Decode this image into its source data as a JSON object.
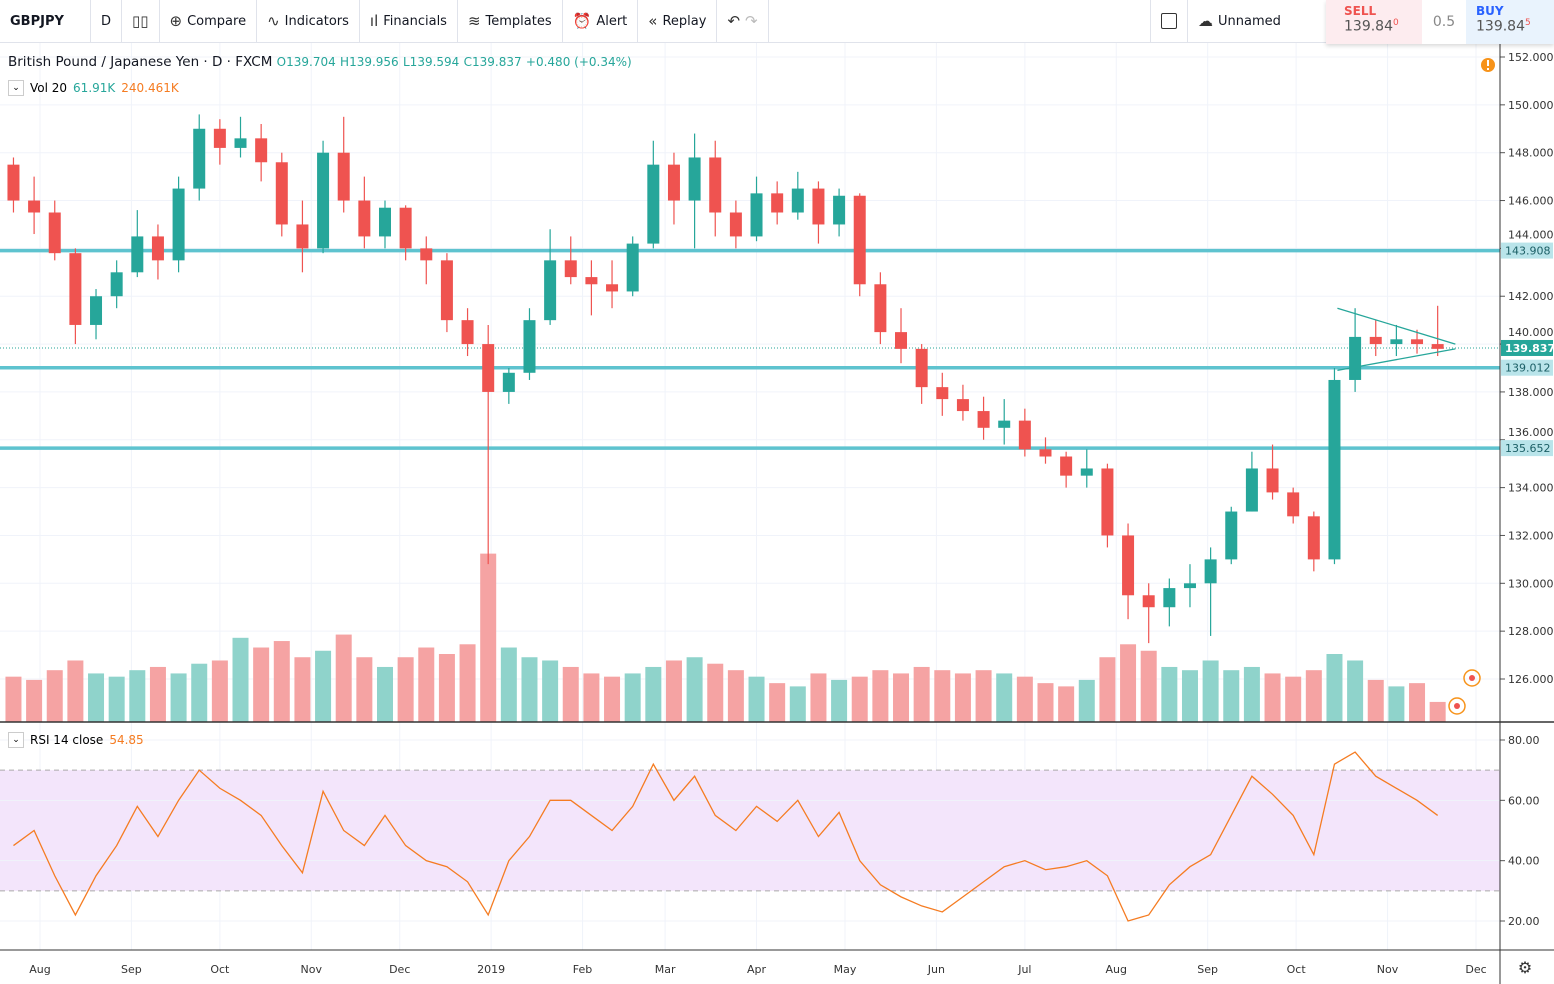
{
  "toolbar": {
    "symbol": "GBPJPY",
    "interval": "D",
    "compare": "Compare",
    "indicators": "Indicators",
    "financials": "Financials",
    "templates": "Templates",
    "alert": "Alert",
    "replay": "Replay",
    "layout_name": "Unnamed",
    "sell_label": "SELL",
    "sell_price": "139.84",
    "sell_sup": "0",
    "spread": "0.5",
    "buy_label": "BUY",
    "buy_price": "139.84",
    "buy_sup": "5"
  },
  "legend": {
    "title": "British Pound / Japanese Yen · D · FXCM",
    "open": "O139.704",
    "high": "H139.956",
    "low": "L139.594",
    "close": "C139.837",
    "change": "+0.480 (+0.34%)",
    "vol_label": "Vol 20",
    "vol_value": "61.91K",
    "vol_ma": "240.461K",
    "rsi_label": "RSI 14 close",
    "rsi_value": "54.85"
  },
  "colors": {
    "up": "#26a69a",
    "down": "#ef5350",
    "vol_up": "#8fd3cb",
    "vol_down": "#f5a3a3",
    "hline": "#5ec3cf",
    "rsi": "#f57c22",
    "rsi_band": "#f3e5fb",
    "accent": "#2962ff"
  },
  "chart_data": {
    "type": "candlestick",
    "symbol": "GBPJPY",
    "price_ticks": [
      "126.000",
      "128.000",
      "130.000",
      "132.000",
      "134.000",
      "136.000",
      "138.000",
      "140.000",
      "142.000",
      "144.000",
      "146.000",
      "148.000",
      "150.000",
      "152.000"
    ],
    "ylim": [
      124.5,
      152.6
    ],
    "x_ticks": [
      {
        "d": "2018-08-01",
        "label": "Aug"
      },
      {
        "d": "2018-09-01",
        "label": "Sep"
      },
      {
        "d": "2018-10-01",
        "label": "Oct"
      },
      {
        "d": "2018-11-01",
        "label": "Nov"
      },
      {
        "d": "2018-12-01",
        "label": "Dec"
      },
      {
        "d": "2019-01-01",
        "label": "2019"
      },
      {
        "d": "2019-02-01",
        "label": "Feb"
      },
      {
        "d": "2019-03-01",
        "label": "Mar"
      },
      {
        "d": "2019-04-01",
        "label": "Apr"
      },
      {
        "d": "2019-05-01",
        "label": "May"
      },
      {
        "d": "2019-06-01",
        "label": "Jun"
      },
      {
        "d": "2019-07-01",
        "label": "Jul"
      },
      {
        "d": "2019-08-01",
        "label": "Aug"
      },
      {
        "d": "2019-09-01",
        "label": "Sep"
      },
      {
        "d": "2019-10-01",
        "label": "Oct"
      },
      {
        "d": "2019-11-01",
        "label": "Nov"
      },
      {
        "d": "2019-12-01",
        "label": "Dec"
      }
    ],
    "horizontal_lines": [
      {
        "price": 143.908,
        "label": "143.908"
      },
      {
        "price": 139.012,
        "label": "139.012"
      },
      {
        "price": 135.652,
        "label": "135.652"
      }
    ],
    "last_price": {
      "price": 139.837,
      "label": "139.837"
    },
    "triangle": [
      {
        "from": [
          "2019-10-15",
          141.5
        ],
        "to": [
          "2019-11-24",
          140.0
        ]
      },
      {
        "from": [
          "2019-10-15",
          138.9
        ],
        "to": [
          "2019-11-24",
          139.8
        ]
      }
    ],
    "candles_columns": [
      "date",
      "open",
      "high",
      "low",
      "close",
      "volume_k",
      "rsi"
    ],
    "candles": [
      [
        "2018-07-23",
        147.5,
        147.8,
        145.5,
        146,
        140,
        45
      ],
      [
        "2018-07-30",
        146,
        147,
        144.6,
        145.5,
        130,
        50
      ],
      [
        "2018-08-06",
        145.5,
        146,
        143.5,
        143.8,
        160,
        35
      ],
      [
        "2018-08-13",
        143.8,
        144,
        140,
        140.8,
        190,
        22
      ],
      [
        "2018-08-20",
        140.8,
        142.3,
        140.2,
        142,
        150,
        35
      ],
      [
        "2018-08-27",
        142,
        143.5,
        141.5,
        143,
        140,
        45
      ],
      [
        "2018-09-03",
        143,
        145.6,
        142.8,
        144.5,
        160,
        58
      ],
      [
        "2018-09-10",
        144.5,
        145,
        142.7,
        143.5,
        170,
        48
      ],
      [
        "2018-09-17",
        143.5,
        147,
        143,
        146.5,
        150,
        60
      ],
      [
        "2018-09-24",
        146.5,
        149.6,
        146,
        149,
        180,
        70
      ],
      [
        "2018-10-01",
        149,
        149.4,
        147.5,
        148.2,
        190,
        64
      ],
      [
        "2018-10-08",
        148.2,
        149.5,
        147.8,
        148.6,
        260,
        60
      ],
      [
        "2018-10-15",
        148.6,
        149.2,
        146.8,
        147.6,
        230,
        55
      ],
      [
        "2018-10-22",
        147.6,
        148,
        144.5,
        145,
        250,
        45
      ],
      [
        "2018-10-29",
        145,
        146,
        143,
        144,
        200,
        36
      ],
      [
        "2018-11-05",
        144,
        148.5,
        143.8,
        148,
        220,
        63
      ],
      [
        "2018-11-12",
        148,
        149.5,
        145.5,
        146,
        270,
        50
      ],
      [
        "2018-11-19",
        146,
        147,
        144,
        144.5,
        200,
        45
      ],
      [
        "2018-11-26",
        144.5,
        146,
        144,
        145.7,
        170,
        55
      ],
      [
        "2018-12-03",
        145.7,
        145.8,
        143.5,
        144,
        200,
        45
      ],
      [
        "2018-12-10",
        144,
        144.5,
        142.5,
        143.5,
        230,
        40
      ],
      [
        "2018-12-17",
        143.5,
        143.8,
        140.5,
        141,
        210,
        38
      ],
      [
        "2018-12-24",
        141,
        141.5,
        139.5,
        140,
        240,
        33
      ],
      [
        "2018-12-31",
        140,
        140.8,
        130.8,
        138,
        520,
        22
      ],
      [
        "2019-01-07",
        138,
        139,
        137.5,
        138.8,
        230,
        40
      ],
      [
        "2019-01-14",
        138.8,
        141.5,
        138.5,
        141,
        200,
        48
      ],
      [
        "2019-01-21",
        141,
        144.8,
        140.8,
        143.5,
        190,
        60
      ],
      [
        "2019-01-28",
        143.5,
        144.5,
        142.5,
        142.8,
        170,
        60
      ],
      [
        "2019-02-04",
        142.8,
        143.5,
        141.2,
        142.5,
        150,
        55
      ],
      [
        "2019-02-11",
        142.5,
        143.5,
        141.5,
        142.2,
        140,
        50
      ],
      [
        "2019-02-18",
        142.2,
        144.5,
        142,
        144.2,
        150,
        58
      ],
      [
        "2019-02-25",
        144.2,
        148.5,
        144,
        147.5,
        170,
        72
      ],
      [
        "2019-03-04",
        147.5,
        148,
        145,
        146,
        190,
        60
      ],
      [
        "2019-03-11",
        146,
        148.8,
        144,
        147.8,
        200,
        68
      ],
      [
        "2019-03-18",
        147.8,
        148.5,
        144.5,
        145.5,
        180,
        55
      ],
      [
        "2019-03-25",
        145.5,
        146,
        144,
        144.5,
        160,
        50
      ],
      [
        "2019-04-01",
        144.5,
        147,
        144.3,
        146.3,
        140,
        58
      ],
      [
        "2019-04-08",
        146.3,
        146.8,
        145,
        145.5,
        120,
        53
      ],
      [
        "2019-04-15",
        145.5,
        147.2,
        145.2,
        146.5,
        110,
        60
      ],
      [
        "2019-04-22",
        146.5,
        146.8,
        144.2,
        145,
        150,
        48
      ],
      [
        "2019-04-29",
        145,
        146.5,
        144.5,
        146.2,
        130,
        56
      ],
      [
        "2019-05-06",
        146.2,
        146.3,
        142,
        142.5,
        140,
        40
      ],
      [
        "2019-05-13",
        142.5,
        143,
        140,
        140.5,
        160,
        32
      ],
      [
        "2019-05-20",
        140.5,
        141.5,
        139.2,
        139.8,
        150,
        28
      ],
      [
        "2019-05-27",
        139.8,
        140,
        137.5,
        138.2,
        170,
        25
      ],
      [
        "2019-06-03",
        138.2,
        138.8,
        137,
        137.7,
        160,
        23
      ],
      [
        "2019-06-10",
        137.7,
        138.3,
        136.8,
        137.2,
        150,
        28
      ],
      [
        "2019-06-17",
        137.2,
        137.8,
        136,
        136.5,
        160,
        33
      ],
      [
        "2019-06-24",
        136.5,
        137.7,
        135.8,
        136.8,
        150,
        38
      ],
      [
        "2019-07-01",
        136.8,
        137.3,
        135.3,
        135.6,
        140,
        40
      ],
      [
        "2019-07-08",
        135.6,
        136.1,
        135,
        135.3,
        120,
        37
      ],
      [
        "2019-07-15",
        135.3,
        135.5,
        134,
        134.5,
        110,
        38
      ],
      [
        "2019-07-22",
        134.5,
        135.6,
        134,
        134.8,
        130,
        40
      ],
      [
        "2019-07-29",
        134.8,
        135,
        131.5,
        132,
        200,
        35
      ],
      [
        "2019-08-05",
        132,
        132.5,
        128.5,
        129.5,
        240,
        20
      ],
      [
        "2019-08-12",
        129.5,
        130,
        127.5,
        129,
        220,
        22
      ],
      [
        "2019-08-19",
        129,
        130.2,
        128.2,
        129.8,
        170,
        32
      ],
      [
        "2019-08-26",
        129.8,
        130.8,
        129,
        130,
        160,
        38
      ],
      [
        "2019-09-02",
        130,
        131.5,
        127.8,
        131,
        190,
        42
      ],
      [
        "2019-09-09",
        131,
        133.2,
        130.8,
        133,
        160,
        55
      ],
      [
        "2019-09-16",
        133,
        135.5,
        133,
        134.8,
        170,
        68
      ],
      [
        "2019-09-23",
        134.8,
        135.8,
        133.5,
        133.8,
        150,
        62
      ],
      [
        "2019-09-30",
        133.8,
        134,
        132.5,
        132.8,
        140,
        55
      ],
      [
        "2019-10-07",
        132.8,
        133,
        130.5,
        131,
        160,
        42
      ],
      [
        "2019-10-14",
        131,
        139,
        130.8,
        138.5,
        210,
        72
      ],
      [
        "2019-10-21",
        138.5,
        141.5,
        138,
        140.3,
        190,
        76
      ],
      [
        "2019-10-28",
        140.3,
        141,
        139.5,
        140,
        130,
        68
      ],
      [
        "2019-11-04",
        140,
        140.8,
        139.5,
        140.2,
        110,
        64
      ],
      [
        "2019-11-11",
        140.2,
        140.6,
        139.6,
        140,
        120,
        60
      ],
      [
        "2019-11-18",
        140,
        141.6,
        139.5,
        139.8,
        62,
        55
      ]
    ],
    "rsi_ticks": [
      "20.00",
      "40.00",
      "60.00",
      "80.00"
    ],
    "rsi_band": [
      30,
      70
    ],
    "rsi_ylim": [
      14,
      86
    ]
  }
}
